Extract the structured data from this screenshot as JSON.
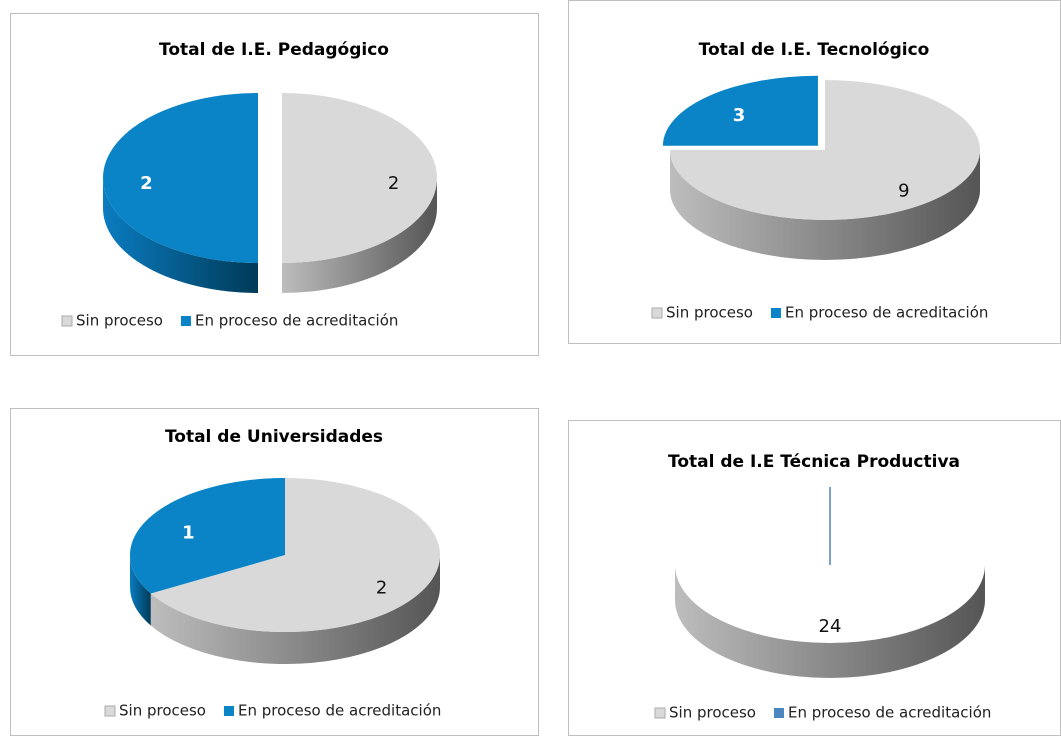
{
  "chart_data": [
    {
      "type": "pie",
      "title": "Total de I.E. Pedagógico",
      "categories": [
        "Sin proceso",
        "En proceso de acreditación"
      ],
      "values": [
        2,
        2
      ],
      "colors": [
        "#d9d9d9",
        "#0a84c6"
      ]
    },
    {
      "type": "pie",
      "title": "Total de I.E. Tecnológico",
      "categories": [
        "Sin proceso",
        "En proceso de acreditación"
      ],
      "values": [
        9,
        3
      ],
      "colors": [
        "#d9d9d9",
        "#0a84c6"
      ]
    },
    {
      "type": "pie",
      "title": "Total de Universidades",
      "categories": [
        "Sin proceso",
        "En proceso de acreditación"
      ],
      "values": [
        2,
        1
      ],
      "colors": [
        "#d9d9d9",
        "#0a84c6"
      ]
    },
    {
      "type": "pie",
      "title": "Total de I.E Técnica Productiva",
      "categories": [
        "Sin proceso",
        "En proceso de acreditación"
      ],
      "values": [
        24,
        0
      ],
      "colors": [
        "#d9d9d9",
        "#4a86c0"
      ]
    }
  ]
}
